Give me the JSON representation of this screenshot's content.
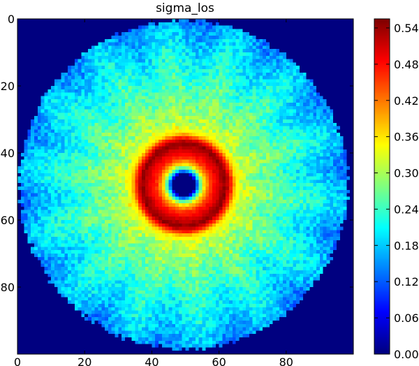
{
  "chart_data": {
    "type": "heatmap",
    "title": "sigma_los",
    "xlabel": "",
    "ylabel": "",
    "grid_size": [
      100,
      100
    ],
    "x_ticks": [
      0,
      20,
      40,
      60,
      80
    ],
    "y_ticks": [
      0,
      20,
      40,
      60,
      80
    ],
    "xlim": [
      0,
      100
    ],
    "ylim": [
      100,
      0
    ],
    "colormap": "jet",
    "colorbar": {
      "min": 0.0,
      "max": 0.555,
      "ticks": [
        "0.00",
        "0.06",
        "0.12",
        "0.18",
        "0.24",
        "0.30",
        "0.36",
        "0.42",
        "0.48",
        "0.54"
      ]
    },
    "structure": {
      "center": [
        49,
        49
      ],
      "disk_radius": 49,
      "inner_hole_radius": 3.2,
      "radial_profile": [
        {
          "r": 0,
          "value": 0.0
        },
        {
          "r": 3.2,
          "value": 0.0
        },
        {
          "r": 4.5,
          "value": 0.2
        },
        {
          "r": 6,
          "value": 0.36
        },
        {
          "r": 8,
          "value": 0.46
        },
        {
          "r": 10.5,
          "value": 0.51
        },
        {
          "r": 12.5,
          "value": 0.55
        },
        {
          "r": 14,
          "value": 0.47
        },
        {
          "r": 15.5,
          "value": 0.36
        },
        {
          "r": 18,
          "value": 0.31
        },
        {
          "r": 25,
          "value": 0.27
        },
        {
          "r": 35,
          "value": 0.22
        },
        {
          "r": 42,
          "value": 0.19
        },
        {
          "r": 49,
          "value": 0.15
        }
      ],
      "background_value": 0.0
    }
  },
  "colors": {
    "background": "#ffffff",
    "axes_frame": "#000000",
    "outside_disk": "#00007f"
  }
}
